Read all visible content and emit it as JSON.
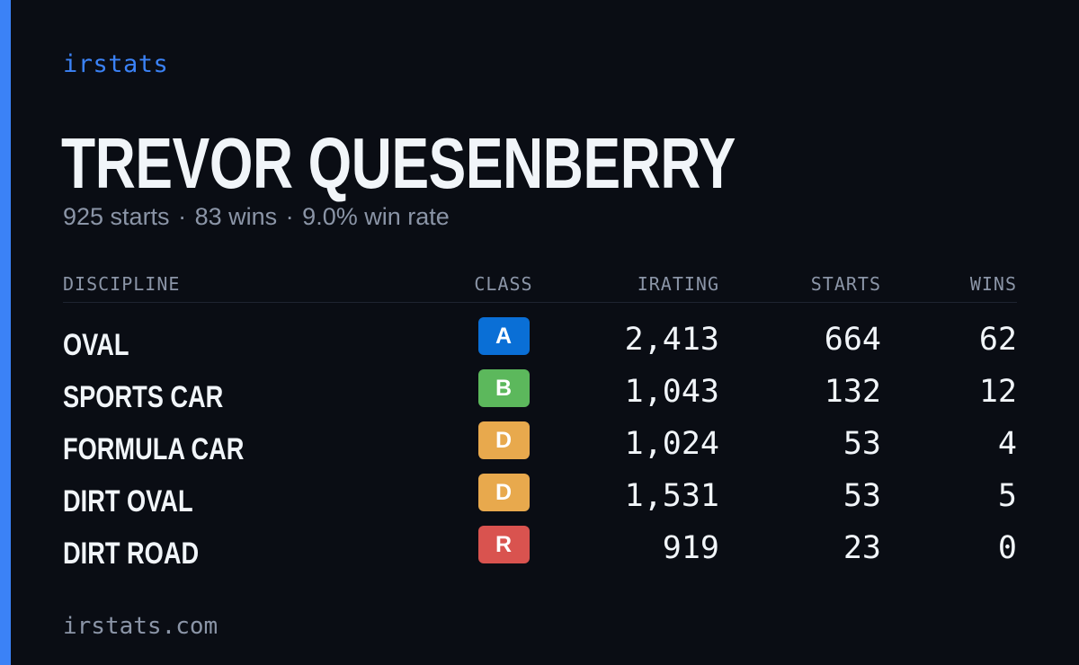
{
  "brand": "irstats",
  "driver_name": "TREVOR QUESENBERRY",
  "summary": {
    "starts": "925 starts",
    "wins": "83 wins",
    "win_rate": "9.0% win rate",
    "separator": "·"
  },
  "table": {
    "headers": {
      "discipline": "DISCIPLINE",
      "class": "CLASS",
      "irating": "IRATING",
      "starts": "STARTS",
      "wins": "WINS"
    },
    "rows": [
      {
        "discipline": "OVAL",
        "class": "A",
        "class_color": "#0a6fd6",
        "irating": "2,413",
        "starts": "664",
        "wins": "62"
      },
      {
        "discipline": "SPORTS CAR",
        "class": "B",
        "class_color": "#5cb85c",
        "irating": "1,043",
        "starts": "132",
        "wins": "12"
      },
      {
        "discipline": "FORMULA CAR",
        "class": "D",
        "class_color": "#e8a94d",
        "irating": "1,024",
        "starts": "53",
        "wins": "4"
      },
      {
        "discipline": "DIRT OVAL",
        "class": "D",
        "class_color": "#e8a94d",
        "irating": "1,531",
        "starts": "53",
        "wins": "5"
      },
      {
        "discipline": "DIRT ROAD",
        "class": "R",
        "class_color": "#d9534f",
        "irating": "919",
        "starts": "23",
        "wins": "0"
      }
    ]
  },
  "footer": "irstats.com",
  "colors": {
    "background": "#0a0d14",
    "accent": "#3b82f6",
    "text_primary": "#f1f5f9",
    "text_muted": "#8b95a7"
  }
}
